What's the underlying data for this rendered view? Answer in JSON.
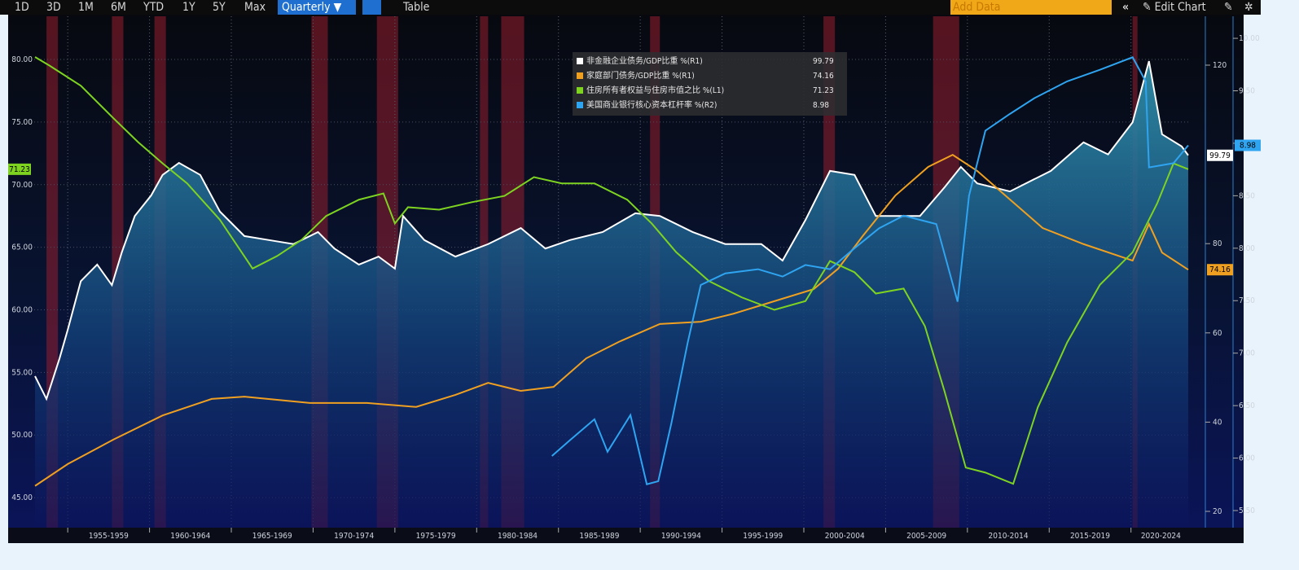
{
  "toolbar": {
    "ranges": [
      "1D",
      "3D",
      "1M",
      "6M",
      "YTD",
      "1Y",
      "5Y",
      "Max"
    ],
    "frequency": "Quarterly ▼",
    "table": "Table",
    "add_data": "Add Data",
    "edit_chart": "Edit Chart"
  },
  "chart_data": {
    "type": "line",
    "xlim": [
      1952.95,
      2023.65
    ],
    "xticks": [
      {
        "value": 1955,
        "label": "1955-1959"
      },
      {
        "value": 1960,
        "label": "1960-1964"
      },
      {
        "value": 1965,
        "label": "1965-1969"
      },
      {
        "value": 1970,
        "label": "1970-1974"
      },
      {
        "value": 1975,
        "label": "1975-1979"
      },
      {
        "value": 1980,
        "label": "1980-1984"
      },
      {
        "value": 1985,
        "label": "1985-1989"
      },
      {
        "value": 1990,
        "label": "1990-1994"
      },
      {
        "value": 1995,
        "label": "1995-1999"
      },
      {
        "value": 2000,
        "label": "2000-2004"
      },
      {
        "value": 2005,
        "label": "2005-2009"
      },
      {
        "value": 2010,
        "label": "2010-2014"
      },
      {
        "value": 2015,
        "label": "2015-2019"
      },
      {
        "value": 2020,
        "label": "2020-2024"
      }
    ],
    "ylim": [
      42.6,
      83.45
    ],
    "yticks": [
      {
        "value": 45,
        "label": "45.00"
      },
      {
        "value": 50,
        "label": "50.00"
      },
      {
        "value": 55,
        "label": "55.00"
      },
      {
        "value": 60,
        "label": "60.00"
      },
      {
        "value": 65,
        "label": "65.00"
      },
      {
        "value": 70,
        "label": "70.00"
      },
      {
        "value": 75,
        "label": "75.00"
      },
      {
        "value": 80,
        "label": "80.00"
      }
    ],
    "y2lim": [
      16.35,
      130.95
    ],
    "y2ticks": [
      20,
      40,
      60,
      80,
      120
    ],
    "y3lim": [
      5.337,
      10.21
    ],
    "y3ticks": [
      {
        "value": 5.5,
        "label": "5.50"
      },
      {
        "value": 6,
        "label": "6.00"
      },
      {
        "value": 6.5,
        "label": "6.50"
      },
      {
        "value": 7,
        "label": "7.00"
      },
      {
        "value": 7.5,
        "label": "7.50"
      },
      {
        "value": 8,
        "label": "8.00"
      },
      {
        "value": 8.5,
        "label": "8.50"
      },
      {
        "value": 9,
        "label": "9.00"
      },
      {
        "value": 9.5,
        "label": "9.50"
      },
      {
        "value": 10,
        "label": "10.00"
      }
    ],
    "grid": true,
    "shaded_periods": [
      [
        1953.7,
        1954.4
      ],
      [
        1957.7,
        1958.4
      ],
      [
        1960.3,
        1961.0
      ],
      [
        1969.9,
        1970.9
      ],
      [
        1973.9,
        1975.2
      ],
      [
        1980.2,
        1980.7
      ],
      [
        1981.5,
        1982.9
      ],
      [
        1990.6,
        1991.2
      ],
      [
        2001.2,
        2001.9
      ],
      [
        2007.9,
        2009.5
      ],
      [
        2020.1,
        2020.4
      ]
    ],
    "series": [
      {
        "name": "非金融企业债务/GDP比重 %(R1)",
        "color": "#ffffff",
        "axis": "y2",
        "last_value": 99.79,
        "x": [
          1953.0,
          1953.7,
          1954.5,
          1955.0,
          1955.8,
          1956.8,
          1957.7,
          1958.3,
          1959.1,
          1960.1,
          1960.8,
          1961.8,
          1963.1,
          1964.3,
          1965.8,
          1967.3,
          1968.8,
          1970.3,
          1971.3,
          1972.8,
          1974.0,
          1975.0,
          1975.5,
          1976.8,
          1978.7,
          1980.7,
          1982.7,
          1984.2,
          1985.7,
          1987.7,
          1989.7,
          1991.2,
          1993.2,
          1995.2,
          1997.4,
          1998.7,
          2000.1,
          2001.6,
          2003.1,
          2004.4,
          2007.1,
          2008.6,
          2009.6,
          2010.6,
          2012.6,
          2015.1,
          2017.1,
          2018.6,
          2020.1,
          2021.1,
          2021.9,
          2023.1,
          2023.5
        ],
        "values": [
          50.3,
          45.2,
          54.3,
          60.7,
          71.6,
          75.3,
          70.7,
          78.0,
          86.2,
          90.8,
          95.4,
          98.1,
          95.4,
          87.2,
          81.7,
          80.8,
          79.9,
          82.6,
          78.9,
          75.3,
          77.1,
          74.4,
          86.2,
          80.8,
          77.1,
          79.9,
          83.5,
          78.9,
          80.8,
          82.6,
          86.8,
          86.2,
          82.6,
          79.9,
          79.9,
          76.2,
          85.3,
          96.3,
          95.4,
          86.2,
          86.2,
          92.6,
          97.2,
          93.5,
          91.7,
          96.3,
          102.7,
          100.0,
          107.2,
          120.9,
          104.5,
          101.8,
          99.79
        ]
      },
      {
        "name": "家庭部门债务/GDP比重 %(R1)",
        "color": "#f0a020",
        "axis": "y2",
        "last_value": 74.16,
        "x": [
          1953.0,
          1955.0,
          1957.8,
          1960.8,
          1963.8,
          1965.8,
          1969.8,
          1973.3,
          1976.3,
          1978.7,
          1980.7,
          1982.7,
          1984.7,
          1986.7,
          1988.7,
          1991.2,
          1993.7,
          1995.7,
          1998.2,
          2000.6,
          2002.1,
          2003.6,
          2005.6,
          2007.6,
          2009.1,
          2010.6,
          2012.6,
          2014.6,
          2017.1,
          2020.1,
          2021.1,
          2021.9,
          2023.5
        ],
        "values": [
          25.7,
          30.6,
          36.1,
          41.5,
          45.2,
          45.7,
          44.3,
          44.3,
          43.4,
          46.1,
          48.8,
          47.0,
          47.9,
          54.3,
          58.0,
          62.0,
          62.5,
          64.3,
          67.1,
          69.8,
          74.4,
          81.7,
          90.8,
          97.2,
          99.9,
          96.3,
          89.9,
          83.5,
          79.9,
          76.2,
          84.4,
          78.0,
          74.16
        ]
      },
      {
        "name": "住房所有者权益与住房市值之比 %(L1)",
        "color": "#7ed321",
        "axis": "y",
        "last_value": 71.23,
        "x": [
          1953.0,
          1953.9,
          1955.8,
          1957.8,
          1959.3,
          1960.8,
          1962.3,
          1964.3,
          1966.3,
          1967.8,
          1969.3,
          1970.8,
          1972.8,
          1974.3,
          1975.0,
          1975.8,
          1977.7,
          1979.7,
          1981.7,
          1983.5,
          1985.2,
          1987.2,
          1989.2,
          1990.7,
          1992.2,
          1994.2,
          1996.2,
          1998.2,
          2000.1,
          2001.6,
          2003.1,
          2004.4,
          2006.1,
          2007.4,
          2008.6,
          2009.9,
          2011.1,
          2012.8,
          2014.3,
          2016.1,
          2018.1,
          2020.1,
          2021.6,
          2022.6,
          2023.5
        ],
        "values": [
          80.2,
          79.5,
          77.9,
          75.3,
          73.4,
          71.7,
          70.1,
          67.2,
          63.3,
          64.3,
          65.6,
          67.5,
          68.8,
          69.3,
          66.9,
          68.2,
          68.0,
          68.6,
          69.1,
          70.6,
          70.1,
          70.1,
          68.8,
          66.9,
          64.6,
          62.3,
          61.0,
          60.0,
          60.7,
          63.9,
          63.0,
          61.3,
          61.7,
          58.7,
          53.5,
          47.4,
          47.0,
          46.1,
          52.2,
          57.4,
          62.0,
          64.6,
          68.5,
          71.7,
          71.23
        ]
      },
      {
        "name": "美国商业银行核心资本杠杆率 %(R2)",
        "color": "#2fa4f0",
        "axis": "y3",
        "last_value": 8.98,
        "x": [
          1984.6,
          1985.7,
          1987.2,
          1988.0,
          1989.4,
          1990.4,
          1991.1,
          1991.9,
          1992.9,
          1993.7,
          1995.2,
          1997.2,
          1998.7,
          2000.1,
          2001.6,
          2003.1,
          2004.6,
          2006.1,
          2008.1,
          2009.4,
          2010.1,
          2011.1,
          2012.6,
          2014.1,
          2016.1,
          2018.1,
          2020.1,
          2020.9,
          2021.1,
          2022.6,
          2023.5
        ],
        "values": [
          6.02,
          6.17,
          6.37,
          6.06,
          6.41,
          5.75,
          5.78,
          6.33,
          7.1,
          7.65,
          7.76,
          7.8,
          7.73,
          7.84,
          7.8,
          8.0,
          8.19,
          8.31,
          8.23,
          7.49,
          8.5,
          9.12,
          9.28,
          9.43,
          9.59,
          9.7,
          9.82,
          9.59,
          8.77,
          8.81,
          8.98
        ]
      }
    ]
  }
}
